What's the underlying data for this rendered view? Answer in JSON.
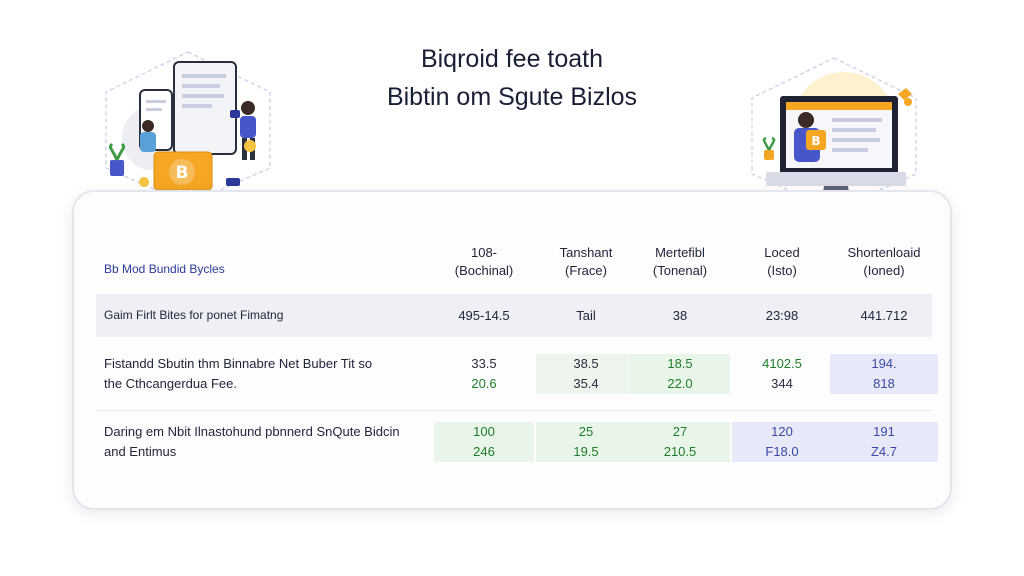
{
  "title": {
    "line1": "Biqroid fee toath",
    "line2": "Bibtin om Sgute Bizlos"
  },
  "illustrations": {
    "left": {
      "icon": "bitcoin-people-devices-illustration",
      "coin_symbol": "B"
    },
    "right": {
      "icon": "person-at-computer-illustration",
      "coin_symbol": "B"
    }
  },
  "table": {
    "label": "Bb Mod Bundid Bycles",
    "columns": [
      {
        "line1": "108-",
        "line2": "(Bochinal)"
      },
      {
        "line1": "Tanshant",
        "line2": "(Frace)"
      },
      {
        "line1": "Mertefibl",
        "line2": "(Tonenal)"
      },
      {
        "line1": "Loced",
        "line2": "(Isto)"
      },
      {
        "line1": "Shortenloaid",
        "line2": "(Ioned)"
      }
    ],
    "band_row": {
      "label": "Gaim Firlt Bites for ponet Fimatng",
      "values": [
        "495-14.5",
        "Tail",
        "38",
        "23:98",
        "441.712"
      ]
    },
    "rows": [
      {
        "label_line1": "Fistandd Sbutin thm Binnabre Net Buber Tit so",
        "label_line2": "the Cthcangerdua Fee.",
        "values": [
          [
            "33.5",
            "20.6"
          ],
          [
            "38.5",
            "35.4"
          ],
          [
            "18.5",
            "22.0"
          ],
          [
            "4102.5",
            "344"
          ],
          [
            "194.",
            "818"
          ]
        ]
      },
      {
        "label_line1": "Daring em Nbit Ilnastohund pbnnerd SnQute Bidcin",
        "label_line2": "and Entimus",
        "values": [
          [
            "100",
            "246"
          ],
          [
            "25",
            "19.5"
          ],
          [
            "27",
            "210.5"
          ],
          [
            "120",
            "F18.0"
          ],
          [
            "191",
            "Z4.7"
          ]
        ]
      }
    ]
  },
  "colors": {
    "accent_blue": "#2b3a99",
    "positive_green": "#1e7d2b",
    "bitcoin_orange": "#f5a623",
    "band_gray": "#eef0f5"
  }
}
